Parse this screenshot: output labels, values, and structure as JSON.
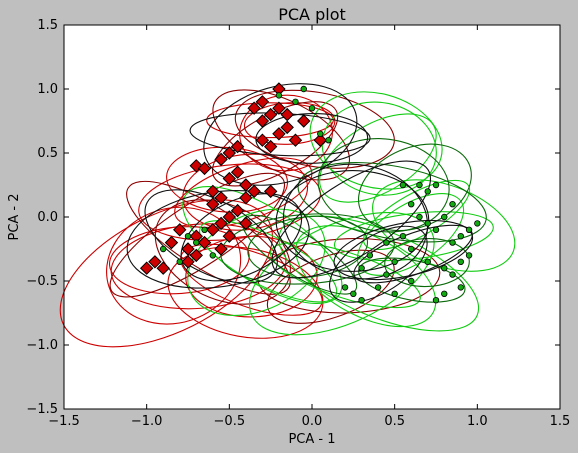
{
  "chart_data": {
    "type": "scatter",
    "title": "PCA plot",
    "xlabel": "PCA - 1",
    "ylabel": "PCA - 2",
    "xlim": [
      -1.5,
      1.5
    ],
    "ylim": [
      -1.5,
      1.5
    ],
    "xticks": [
      "−1.5",
      "−1.0",
      "−0.5",
      "0.0",
      "0.5",
      "1.0",
      "1.5"
    ],
    "yticks": [
      "−1.5",
      "−1.0",
      "−0.5",
      "0.0",
      "0.5",
      "1.0",
      "1.5"
    ],
    "grid": false,
    "legend": "none",
    "colors": {
      "red": "#cc0000",
      "darkred": "#8b0000",
      "green": "#11cc11",
      "darkgreen": "#0a6a0a",
      "black": "#111111",
      "figure_bg": "#bfbfbf",
      "axes_bg": "#ffffff"
    },
    "series": [
      {
        "marker": "diamond",
        "color": "#cc0000",
        "points": [
          [
            -0.9,
            -0.4
          ],
          [
            -0.95,
            -0.35
          ],
          [
            -0.85,
            -0.2
          ],
          [
            -0.8,
            -0.1
          ],
          [
            -0.75,
            -0.25
          ],
          [
            -0.7,
            -0.15
          ],
          [
            -0.65,
            -0.2
          ],
          [
            -0.6,
            -0.1
          ],
          [
            -0.55,
            -0.05
          ],
          [
            -0.5,
            0.0
          ],
          [
            -0.45,
            0.05
          ],
          [
            -0.55,
            0.15
          ],
          [
            -0.6,
            0.2
          ],
          [
            -0.5,
            0.3
          ],
          [
            -0.45,
            0.35
          ],
          [
            -0.4,
            0.25
          ],
          [
            -0.4,
            0.15
          ],
          [
            -0.35,
            0.2
          ],
          [
            -0.7,
            0.4
          ],
          [
            -0.65,
            0.38
          ],
          [
            -0.55,
            0.45
          ],
          [
            -0.5,
            0.5
          ],
          [
            -0.45,
            0.55
          ],
          [
            -0.3,
            0.6
          ],
          [
            -0.25,
            0.55
          ],
          [
            -0.2,
            0.65
          ],
          [
            -0.3,
            0.75
          ],
          [
            -0.25,
            0.8
          ],
          [
            -0.35,
            0.85
          ],
          [
            -0.3,
            0.9
          ],
          [
            -0.2,
            0.85
          ],
          [
            -0.15,
            0.8
          ],
          [
            -0.1,
            0.6
          ],
          [
            -0.15,
            0.7
          ],
          [
            -0.05,
            0.75
          ],
          [
            -0.2,
            1.0
          ],
          [
            -0.4,
            -0.05
          ],
          [
            -0.5,
            -0.15
          ],
          [
            -0.7,
            -0.3
          ],
          [
            -0.75,
            -0.35
          ],
          [
            -1.0,
            -0.4
          ],
          [
            -0.6,
            0.1
          ],
          [
            -0.25,
            0.2
          ],
          [
            -0.55,
            -0.25
          ],
          [
            0.05,
            0.6
          ]
        ]
      },
      {
        "marker": "circle",
        "color": "#11aa11",
        "points": [
          [
            0.6,
            -0.5
          ],
          [
            0.7,
            -0.35
          ],
          [
            0.8,
            -0.4
          ],
          [
            0.85,
            -0.45
          ],
          [
            0.9,
            -0.35
          ],
          [
            0.95,
            -0.3
          ],
          [
            0.85,
            -0.2
          ],
          [
            0.9,
            -0.15
          ],
          [
            0.75,
            -0.1
          ],
          [
            0.7,
            -0.05
          ],
          [
            0.65,
            0.0
          ],
          [
            0.6,
            0.1
          ],
          [
            0.7,
            0.2
          ],
          [
            0.75,
            0.25
          ],
          [
            0.65,
            0.25
          ],
          [
            0.55,
            0.25
          ],
          [
            0.9,
            -0.55
          ],
          [
            0.8,
            -0.6
          ],
          [
            0.75,
            -0.65
          ],
          [
            0.5,
            -0.6
          ],
          [
            0.4,
            -0.55
          ],
          [
            0.45,
            -0.45
          ],
          [
            0.5,
            -0.35
          ],
          [
            0.35,
            -0.3
          ],
          [
            0.3,
            -0.4
          ],
          [
            0.2,
            -0.55
          ],
          [
            0.25,
            -0.6
          ],
          [
            0.3,
            -0.65
          ],
          [
            -0.1,
            0.9
          ],
          [
            -0.05,
            1.0
          ],
          [
            -0.2,
            0.95
          ],
          [
            0.0,
            0.85
          ],
          [
            0.05,
            0.65
          ],
          [
            0.1,
            0.6
          ],
          [
            -0.9,
            -0.25
          ],
          [
            -0.8,
            -0.35
          ],
          [
            -0.75,
            -0.15
          ],
          [
            -0.7,
            -0.2
          ],
          [
            -0.65,
            -0.1
          ],
          [
            -0.6,
            -0.3
          ],
          [
            0.95,
            -0.1
          ],
          [
            1.0,
            -0.05
          ],
          [
            0.8,
            0.0
          ],
          [
            0.85,
            0.1
          ],
          [
            0.55,
            -0.15
          ],
          [
            0.45,
            -0.2
          ],
          [
            0.6,
            -0.25
          ]
        ]
      }
    ],
    "curve_bundles": [
      {
        "color": "#cc0000",
        "count": 14
      },
      {
        "color": "#8b0000",
        "count": 8
      },
      {
        "color": "#11cc11",
        "count": 14
      },
      {
        "color": "#0a6a0a",
        "count": 8
      },
      {
        "color": "#111111",
        "count": 12
      }
    ]
  }
}
